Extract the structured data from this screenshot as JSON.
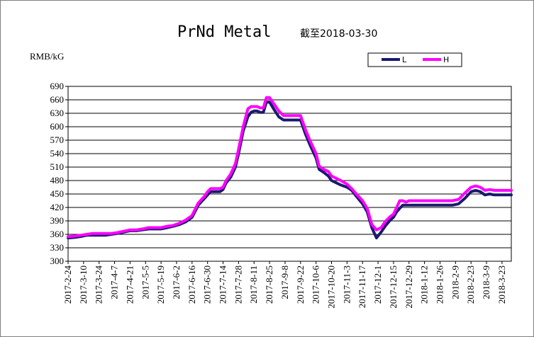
{
  "chart_data": {
    "type": "line",
    "title": "PrNd Metal",
    "subtitle": "截至2018-03-30",
    "unit_label": "RMB/kG",
    "ylim": [
      300,
      690
    ],
    "y_ticks": [
      300,
      330,
      360,
      390,
      420,
      450,
      480,
      510,
      540,
      570,
      600,
      630,
      660,
      690
    ],
    "x_tick_labels": [
      "2017-2-24",
      "2017-3-10",
      "2017-3-24",
      "2017-4-7",
      "2017-4-21",
      "2017-5-5",
      "2017-5-19",
      "2017-6-2",
      "2017-6-16",
      "2017-6-30",
      "2017-7-14",
      "2017-7-28",
      "2017-8-11",
      "2017-8-25",
      "2017-9-8",
      "2017-9-22",
      "2017-10-6",
      "2017-10-20",
      "2017-11-3",
      "2017-11-17",
      "2017-12-1",
      "2017-12-15",
      "2017-12-29",
      "2018-1-12",
      "2018-1-26",
      "2018-2-9",
      "2018-2-23",
      "2018-3-9",
      "2018-3-23"
    ],
    "x_range": [
      0,
      28.6
    ],
    "grid": "horizontal",
    "legend_position": "top-right",
    "series": [
      {
        "name": "L",
        "color": "#1a1a6e",
        "x": [
          0,
          0.4,
          0.8,
          1.2,
          1.6,
          2.0,
          2.4,
          2.8,
          3.2,
          3.6,
          4.0,
          4.4,
          4.8,
          5.2,
          5.6,
          6.0,
          6.4,
          6.8,
          7.2,
          7.6,
          8.0,
          8.4,
          8.8,
          9.0,
          9.2,
          9.5,
          9.8,
          10.0,
          10.2,
          10.5,
          10.8,
          11.0,
          11.3,
          11.6,
          11.8,
          12.0,
          12.2,
          12.4,
          12.6,
          12.8,
          13.0,
          13.3,
          13.6,
          13.9,
          14.0,
          14.3,
          14.6,
          14.8,
          15.0,
          15.3,
          15.6,
          16.0,
          16.2,
          16.5,
          16.8,
          17.0,
          17.3,
          17.6,
          18.0,
          18.3,
          18.6,
          19.0,
          19.3,
          19.6,
          19.9,
          20.2,
          20.5,
          20.8,
          21.0,
          21.2,
          21.4,
          21.6,
          21.8,
          22.0,
          22.3,
          22.6,
          23.0,
          23.3,
          23.6,
          24.0,
          24.4,
          24.8,
          25.2,
          25.6,
          26.0,
          26.3,
          26.6,
          26.9,
          27.2,
          27.5,
          27.8,
          28.1,
          28.4,
          28.6
        ],
        "values": [
          352,
          353,
          355,
          358,
          358,
          358,
          358,
          360,
          362,
          365,
          368,
          368,
          370,
          372,
          372,
          372,
          375,
          378,
          382,
          388,
          398,
          425,
          440,
          448,
          455,
          455,
          455,
          460,
          475,
          488,
          510,
          540,
          590,
          622,
          632,
          635,
          635,
          632,
          632,
          655,
          655,
          638,
          622,
          615,
          615,
          615,
          615,
          615,
          615,
          585,
          560,
          530,
          505,
          498,
          490,
          480,
          475,
          470,
          465,
          458,
          445,
          428,
          410,
          375,
          352,
          365,
          380,
          392,
          398,
          410,
          418,
          425,
          425,
          425,
          425,
          425,
          425,
          425,
          425,
          425,
          425,
          425,
          428,
          440,
          455,
          458,
          455,
          448,
          450,
          448,
          448,
          448,
          448,
          448
        ],
        "draw_offsets": true
      },
      {
        "name": "H",
        "color": "#ff00ff",
        "x": [
          0,
          0.4,
          0.8,
          1.2,
          1.6,
          2.0,
          2.4,
          2.8,
          3.2,
          3.6,
          4.0,
          4.4,
          4.8,
          5.2,
          5.6,
          6.0,
          6.4,
          6.8,
          7.2,
          7.6,
          8.0,
          8.4,
          8.8,
          9.0,
          9.2,
          9.5,
          9.8,
          10.0,
          10.2,
          10.5,
          10.8,
          11.0,
          11.3,
          11.6,
          11.8,
          12.0,
          12.2,
          12.4,
          12.6,
          12.8,
          13.0,
          13.3,
          13.6,
          13.9,
          14.0,
          14.3,
          14.6,
          14.8,
          15.0,
          15.3,
          15.6,
          16.0,
          16.2,
          16.5,
          16.8,
          17.0,
          17.3,
          17.6,
          18.0,
          18.3,
          18.6,
          19.0,
          19.3,
          19.6,
          19.9,
          20.2,
          20.5,
          20.8,
          21.0,
          21.2,
          21.4,
          21.6,
          21.8,
          22.0,
          22.3,
          22.6,
          23.0,
          23.3,
          23.6,
          24.0,
          24.4,
          24.8,
          25.2,
          25.6,
          26.0,
          26.3,
          26.6,
          26.9,
          27.2,
          27.5,
          27.8,
          28.1,
          28.4,
          28.6
        ],
        "values": [
          355,
          356,
          358,
          360,
          362,
          362,
          362,
          362,
          364,
          367,
          370,
          370,
          372,
          375,
          375,
          375,
          378,
          380,
          385,
          392,
          402,
          430,
          445,
          455,
          462,
          462,
          462,
          465,
          480,
          495,
          518,
          550,
          600,
          640,
          645,
          645,
          645,
          642,
          642,
          665,
          665,
          650,
          635,
          625,
          625,
          625,
          625,
          625,
          625,
          595,
          570,
          540,
          512,
          505,
          500,
          490,
          485,
          480,
          472,
          462,
          450,
          435,
          418,
          382,
          370,
          375,
          390,
          400,
          405,
          420,
          435,
          435,
          432,
          435,
          435,
          435,
          435,
          435,
          435,
          435,
          435,
          435,
          438,
          452,
          465,
          468,
          465,
          458,
          460,
          458,
          458,
          458,
          458,
          458
        ]
      }
    ]
  }
}
